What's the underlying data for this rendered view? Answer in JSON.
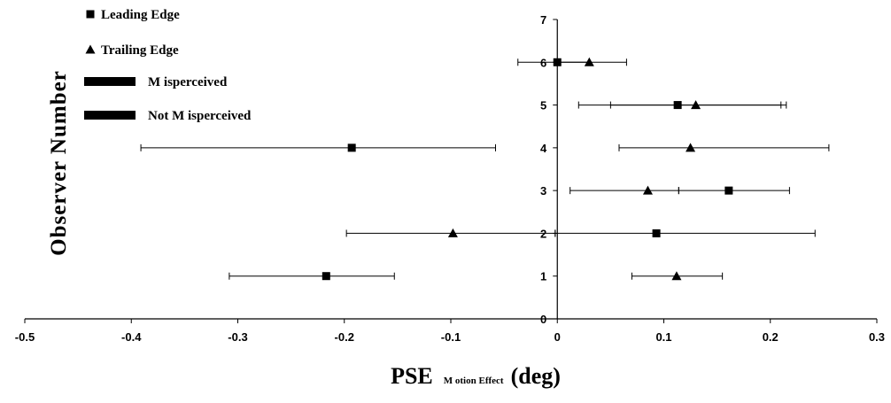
{
  "chart_data": {
    "type": "scatter",
    "title": "",
    "xlabel_main": "PSE",
    "xlabel_sub": "M otion Effect",
    "xlabel_unit": "(deg)",
    "ylabel": "Observer Number",
    "xlim": [
      -0.5,
      0.3
    ],
    "ylim": [
      0,
      7
    ],
    "x_ticks": [
      -0.5,
      -0.4,
      -0.3,
      -0.2,
      -0.1,
      0,
      0.1,
      0.2,
      0.3
    ],
    "x_tick_labels": [
      "-0.5",
      "-0.4",
      "-0.3",
      "-0.2",
      "-0.1",
      "0",
      "0.1",
      "0.2",
      "0.3"
    ],
    "y_ticks": [
      0,
      1,
      2,
      3,
      4,
      5,
      6,
      7
    ],
    "y_tick_labels": [
      "0",
      "1",
      "2",
      "3",
      "4",
      "5",
      "6",
      "7"
    ],
    "grid": false,
    "legend_position": "top-left",
    "legend": [
      {
        "label": "Leading Edge",
        "marker": "square"
      },
      {
        "label": "Trailing Edge",
        "marker": "triangle"
      },
      {
        "label": "M isperceived",
        "marker": "line"
      },
      {
        "label": "Not M isperceived",
        "marker": "line"
      }
    ],
    "series": [
      {
        "name": "Leading Edge",
        "marker": "square",
        "points": [
          {
            "y": 1,
            "x": -0.217,
            "err_low": -0.308,
            "err_high": -0.153
          },
          {
            "y": 2,
            "x": 0.093,
            "err_low": -0.002,
            "err_high": 0.242
          },
          {
            "y": 3,
            "x": 0.161,
            "err_low": 0.114,
            "err_high": 0.218
          },
          {
            "y": 4,
            "x": -0.193,
            "err_low": -0.391,
            "err_high": -0.058
          },
          {
            "y": 5,
            "x": 0.113,
            "err_low": 0.05,
            "err_high": 0.21
          },
          {
            "y": 6,
            "x": 0.0,
            "err_low": -0.037,
            "err_high": 0.03
          }
        ]
      },
      {
        "name": "Trailing Edge",
        "marker": "triangle",
        "points": [
          {
            "y": 1,
            "x": 0.112,
            "err_low": 0.07,
            "err_high": 0.155
          },
          {
            "y": 2,
            "x": -0.098,
            "err_low": -0.198,
            "err_high": -0.002
          },
          {
            "y": 3,
            "x": 0.085,
            "err_low": 0.012,
            "err_high": 0.114
          },
          {
            "y": 4,
            "x": 0.125,
            "err_low": 0.058,
            "err_high": 0.255
          },
          {
            "y": 5,
            "x": 0.13,
            "err_low": 0.02,
            "err_high": 0.215
          },
          {
            "y": 6,
            "x": 0.03,
            "err_low": 0.002,
            "err_high": 0.065
          }
        ]
      }
    ]
  }
}
